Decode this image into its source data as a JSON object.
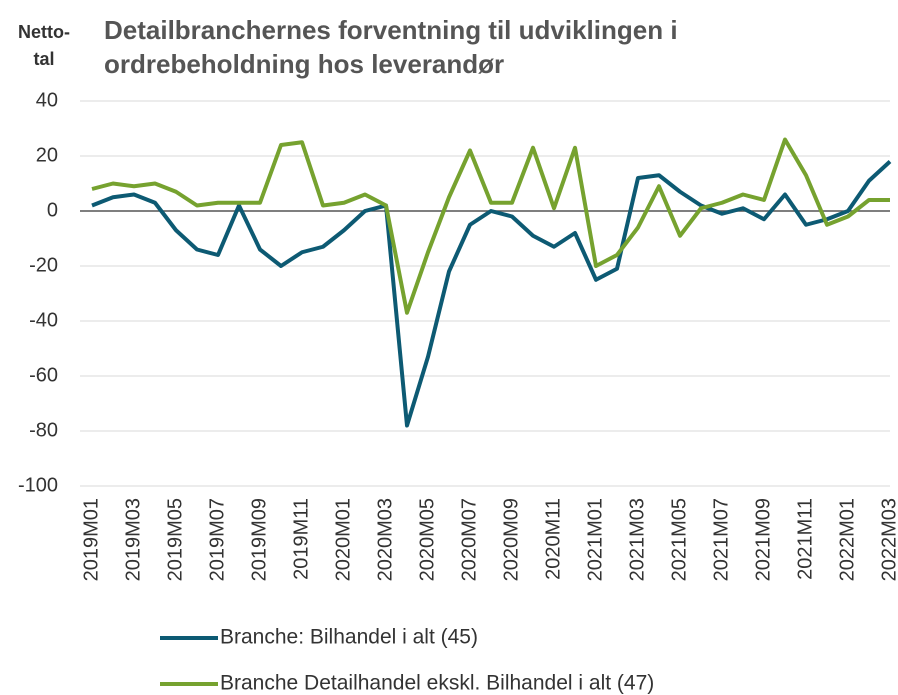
{
  "chart_data": {
    "type": "line",
    "title": [
      "Detailbranchernes forventning til udviklingen i",
      "ordrebeholdning hos leverandør"
    ],
    "ylabel": [
      "Netto-",
      "tal"
    ],
    "categories": [
      "2019M01",
      null,
      "2019M03",
      null,
      "2019M05",
      null,
      "2019M07",
      null,
      "2019M09",
      null,
      "2019M11",
      null,
      "2020M01",
      null,
      "2020M03",
      null,
      "2020M05",
      null,
      "2020M07",
      null,
      "2020M09",
      null,
      "2020M11",
      null,
      "2021M01",
      null,
      "2021M03",
      null,
      "2021M05",
      null,
      "2021M07",
      null,
      "2021M09",
      null,
      "2021M11",
      null,
      "2022M01",
      null,
      "2022M03"
    ],
    "series": [
      {
        "name": "Branche: Bilhandel i alt (45)",
        "color": "#0d5a73",
        "values": [
          2,
          5,
          6,
          3,
          -7,
          -14,
          -16,
          2,
          -14,
          -20,
          -15,
          -13,
          -7,
          0,
          2,
          -78,
          -53,
          -22,
          -5,
          0,
          -2,
          -9,
          -13,
          -8,
          -25,
          -21,
          12,
          13,
          7,
          2,
          -1,
          1,
          -3,
          6,
          -5,
          -3,
          0,
          11,
          18
        ]
      },
      {
        "name": "Branche Detailhandel ekskl. Bilhandel i alt (47)",
        "color": "#76a22f",
        "values": [
          8,
          10,
          9,
          10,
          7,
          2,
          3,
          3,
          3,
          24,
          25,
          2,
          3,
          6,
          2,
          -37,
          -15,
          5,
          22,
          3,
          3,
          23,
          1,
          23,
          -20,
          -16,
          -6,
          9,
          -9,
          1,
          3,
          6,
          4,
          26,
          13,
          -5,
          -2,
          4,
          4
        ]
      }
    ],
    "ylim": [
      -100,
      40
    ],
    "yticks": [
      -100,
      -80,
      -60,
      -40,
      -20,
      0,
      20,
      40
    ],
    "grid": true,
    "legend": "bottom"
  }
}
